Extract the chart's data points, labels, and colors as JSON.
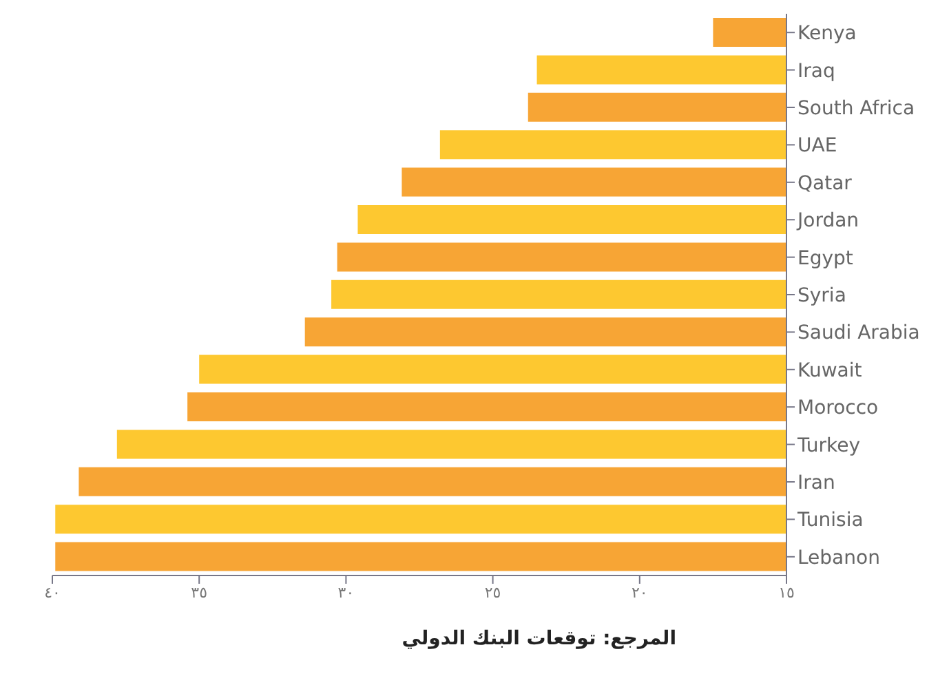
{
  "chart_data": {
    "type": "bar",
    "orientation": "horizontal",
    "categories": [
      "Kenya",
      "Iraq",
      "South Africa",
      "UAE",
      "Qatar",
      "Jordan",
      "Egypt",
      "Syria",
      "Saudi Arabia",
      "Kuwait",
      "Morocco",
      "Turkey",
      "Iran",
      "Tunisia",
      "Lebanon"
    ],
    "values": [
      17.5,
      23.5,
      23.8,
      26.8,
      28.1,
      29.6,
      30.3,
      30.5,
      31.4,
      35,
      35.4,
      37.8,
      39.1,
      39.9,
      39.9
    ],
    "colors": [
      "#f7a535",
      "#fdc830",
      "#f7a535",
      "#fdc830",
      "#f7a535",
      "#fdc830",
      "#f7a535",
      "#fdc830",
      "#f7a535",
      "#fdc830",
      "#f7a535",
      "#fdc830",
      "#f7a535",
      "#fdc830",
      "#f7a535"
    ],
    "xlim": [
      40,
      15
    ],
    "xticks": [
      {
        "value": 40,
        "label": "٤٠"
      },
      {
        "value": 35,
        "label": "٣٥"
      },
      {
        "value": 30,
        "label": "٣٠"
      },
      {
        "value": 25,
        "label": "٢٥"
      },
      {
        "value": 20,
        "label": "٢٠"
      },
      {
        "value": 15,
        "label": "١٥"
      }
    ],
    "annotations": [
      "المرجع: توقعات البنك الدولي"
    ]
  }
}
